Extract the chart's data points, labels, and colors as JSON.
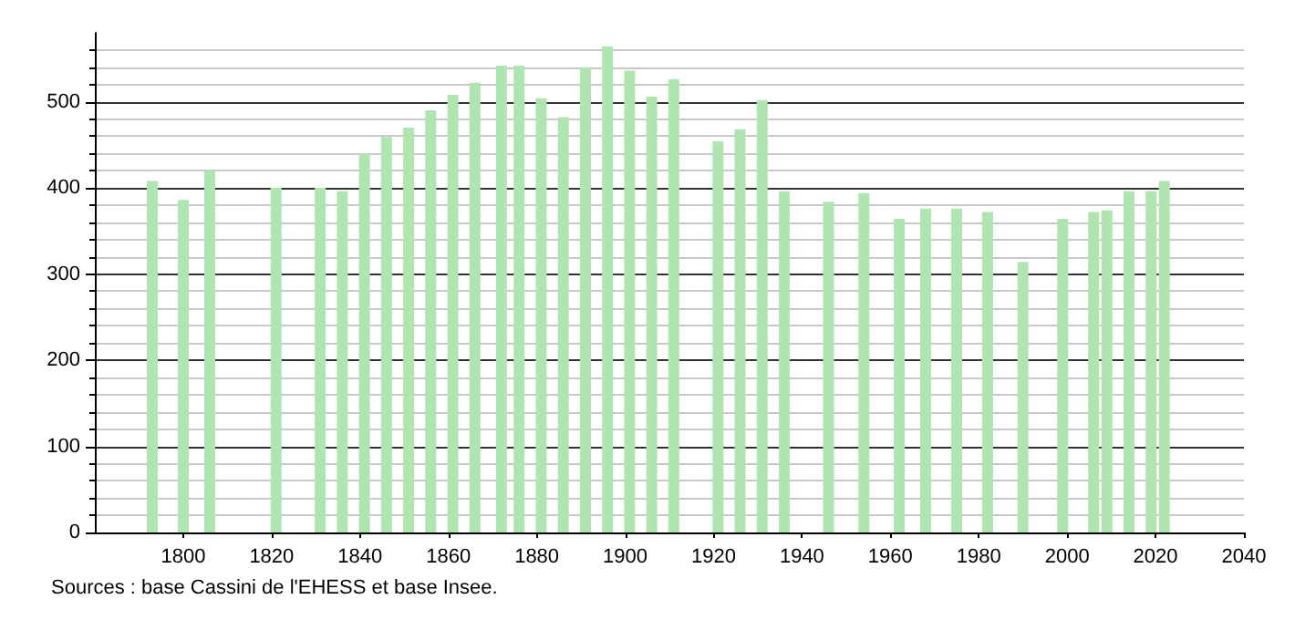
{
  "chart_data": {
    "type": "bar",
    "x": [
      1793,
      1800,
      1806,
      1821,
      1831,
      1836,
      1841,
      1846,
      1851,
      1856,
      1861,
      1866,
      1872,
      1876,
      1881,
      1886,
      1891,
      1896,
      1901,
      1906,
      1911,
      1921,
      1926,
      1931,
      1936,
      1946,
      1954,
      1962,
      1968,
      1975,
      1982,
      1990,
      1999,
      2006,
      2009,
      2014,
      2019,
      2022
    ],
    "values": [
      408,
      386,
      420,
      400,
      400,
      396,
      440,
      459,
      470,
      490,
      508,
      522,
      542,
      542,
      504,
      482,
      540,
      564,
      536,
      506,
      526,
      454,
      468,
      502,
      396,
      384,
      394,
      364,
      376,
      376,
      372,
      314,
      364,
      372,
      374,
      396,
      396,
      408
    ],
    "color": "#b0e4b0",
    "xlim": [
      1780,
      2040
    ],
    "xticks": [
      1800,
      1820,
      1840,
      1860,
      1880,
      1900,
      1920,
      1940,
      1960,
      1980,
      2000,
      2020,
      2040
    ],
    "ylim": [
      0,
      580
    ],
    "yticks": [
      0,
      100,
      200,
      300,
      400,
      500
    ],
    "grid": "y",
    "annotations": [
      "Sources : base Cassini de l'EHESS et base Insee."
    ]
  }
}
